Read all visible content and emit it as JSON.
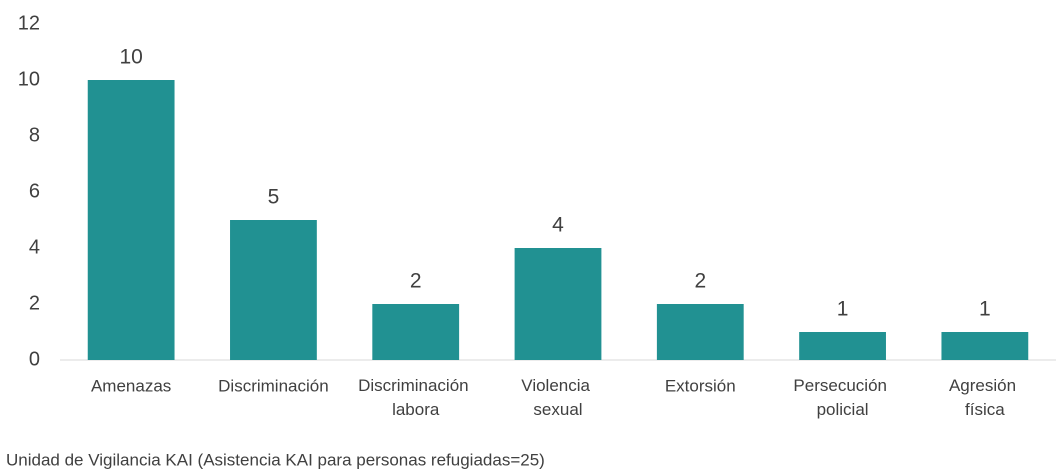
{
  "chart_data": {
    "type": "bar",
    "categories": [
      "Amenazas",
      "Discriminación",
      "Discriminación labora",
      "Violencia sexual",
      "Extorsión",
      "Persecución policial",
      "Agresión física"
    ],
    "values": [
      10,
      5,
      2,
      4,
      2,
      1,
      1
    ],
    "color": "#219192",
    "ylim": [
      0,
      12
    ],
    "yticks": [
      0,
      2,
      4,
      6,
      8,
      10,
      12
    ],
    "grid": false,
    "note": "Unidad de Vigilancia KAI (Asistencia KAI para personas refugiadas=25)"
  }
}
